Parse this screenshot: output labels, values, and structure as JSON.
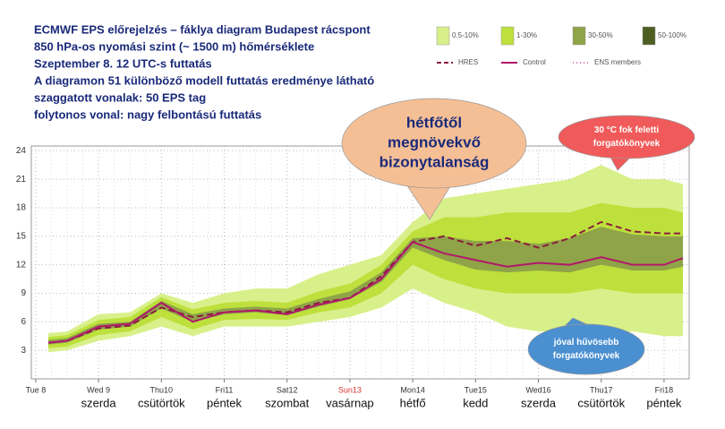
{
  "chart_data": {
    "type": "plume",
    "title_lines": [
      "ECMWF EPS előrejelzés – fáklya diagram Budapest rácspont",
      "850 hPa-os nyomási szint (~ 1500 m) hőmérséklete",
      "Szeptember 8. 12 UTC-s futtatás",
      "A diagramon 51 különböző modell futtatás eredménye látható",
      "szaggatott vonalak: 50 EPS tag",
      "folytonos vonal: nagy felbontású futtatás"
    ],
    "x": [
      0.2,
      0.5,
      1.0,
      1.5,
      2.0,
      2.5,
      3.0,
      3.5,
      4.0,
      4.5,
      5.0,
      5.5,
      6.0,
      6.5,
      7.0,
      7.5,
      8.0,
      8.5,
      9.0,
      9.5,
      10.0,
      10.3
    ],
    "xlim": [
      -0.07,
      10.4
    ],
    "xticks": [
      {
        "value": 0,
        "label": "Tue 8"
      },
      {
        "value": 1,
        "label": "Wed 9"
      },
      {
        "value": 2,
        "label": "Thu10"
      },
      {
        "value": 3,
        "label": "Fri11"
      },
      {
        "value": 4,
        "label": "Sat12"
      },
      {
        "value": 5,
        "label": "Sun13",
        "color": "#e03030"
      },
      {
        "value": 6,
        "label": "Mon14"
      },
      {
        "value": 7,
        "label": "Tue15"
      },
      {
        "value": 8,
        "label": "Wed16"
      },
      {
        "value": 9,
        "label": "Thu17"
      },
      {
        "value": 10,
        "label": "Fri18"
      }
    ],
    "day_names": [
      null,
      "szerda",
      "csütörtök",
      "péntek",
      "szombat",
      "vasárnap",
      "hétfő",
      "kedd",
      "szerda",
      "csütörtök",
      "péntek"
    ],
    "ylim": [
      0,
      24.5
    ],
    "yticks": [
      3,
      6,
      9,
      12,
      15,
      18,
      21,
      24
    ],
    "grid": true,
    "bands": [
      {
        "name": "0.5-10%",
        "color": "#d8f08a",
        "lower": [
          2.8,
          3.0,
          4.0,
          4.5,
          5.5,
          4.5,
          5.5,
          5.5,
          5.5,
          6.0,
          6.5,
          7.5,
          9.5,
          8.0,
          7.0,
          5.5,
          5.0,
          5.0,
          4.5,
          5.0,
          4.5,
          4.5
        ],
        "upper": [
          4.8,
          5.0,
          6.8,
          7.0,
          9.0,
          8.0,
          9.0,
          9.5,
          9.5,
          11.0,
          12.0,
          13.0,
          16.5,
          19.0,
          19.5,
          20.0,
          20.5,
          21.0,
          22.5,
          21.0,
          21.0,
          20.5
        ]
      },
      {
        "name": "1-30%",
        "color": "#bde03c",
        "lower": [
          3.2,
          3.4,
          4.6,
          5.0,
          6.5,
          5.2,
          6.2,
          6.3,
          6.2,
          7.0,
          7.5,
          9.0,
          12.0,
          10.5,
          9.5,
          9.0,
          9.0,
          9.0,
          9.5,
          9.0,
          9.0,
          9.0
        ],
        "upper": [
          4.4,
          4.6,
          6.2,
          6.5,
          8.6,
          7.3,
          8.0,
          8.2,
          8.0,
          9.2,
          10.0,
          12.0,
          15.5,
          17.0,
          17.0,
          17.5,
          17.5,
          17.5,
          18.5,
          18.0,
          18.0,
          17.5
        ]
      },
      {
        "name": "30-50%",
        "color": "#8fa348",
        "lower": [
          3.6,
          3.8,
          5.2,
          5.5,
          7.4,
          6.0,
          6.8,
          7.0,
          6.7,
          7.6,
          8.4,
          10.2,
          13.8,
          12.5,
          11.5,
          11.2,
          11.4,
          11.2,
          12.0,
          11.4,
          11.4,
          11.8
        ],
        "upper": [
          4.1,
          4.3,
          5.8,
          6.0,
          8.2,
          6.8,
          7.4,
          7.6,
          7.4,
          8.4,
          9.2,
          11.2,
          14.8,
          15.0,
          14.5,
          14.5,
          14.2,
          14.8,
          16.0,
          15.2,
          15.0,
          15.0
        ]
      },
      {
        "name": "50-100%",
        "color": "#4d5e22"
      }
    ],
    "series": [
      {
        "name": "HRES",
        "color": "#8a1c3c",
        "dash": true,
        "values": [
          3.8,
          4.0,
          5.3,
          5.6,
          7.5,
          6.5,
          7.0,
          7.2,
          7.0,
          8.0,
          8.5,
          10.8,
          14.4,
          15.0,
          14.0,
          14.8,
          13.8,
          14.8,
          16.5,
          15.5,
          15.3,
          15.3
        ]
      },
      {
        "name": "Control",
        "color": "#b0186a",
        "dash": false,
        "values": [
          3.8,
          4.0,
          5.5,
          5.8,
          8.0,
          6.0,
          7.0,
          7.2,
          6.8,
          7.8,
          8.5,
          10.5,
          14.4,
          13.2,
          12.5,
          11.8,
          12.2,
          12.0,
          12.8,
          12.0,
          12.0,
          12.7
        ]
      },
      {
        "name": "ENS members",
        "color": "#e070b0",
        "dotted": true
      }
    ],
    "annotations": [
      {
        "lines": [
          "hétfőtől",
          "megnövekvő",
          "bizonytalanság"
        ],
        "color": "#f5bf95"
      },
      {
        "lines": [
          "30 °C fok feletti",
          "forgatókönyvek"
        ],
        "color": "#f05a5a"
      },
      {
        "lines": [
          "jóval hűvösebb",
          "forgatókönyvek"
        ],
        "color": "#4a8fd0"
      }
    ]
  }
}
